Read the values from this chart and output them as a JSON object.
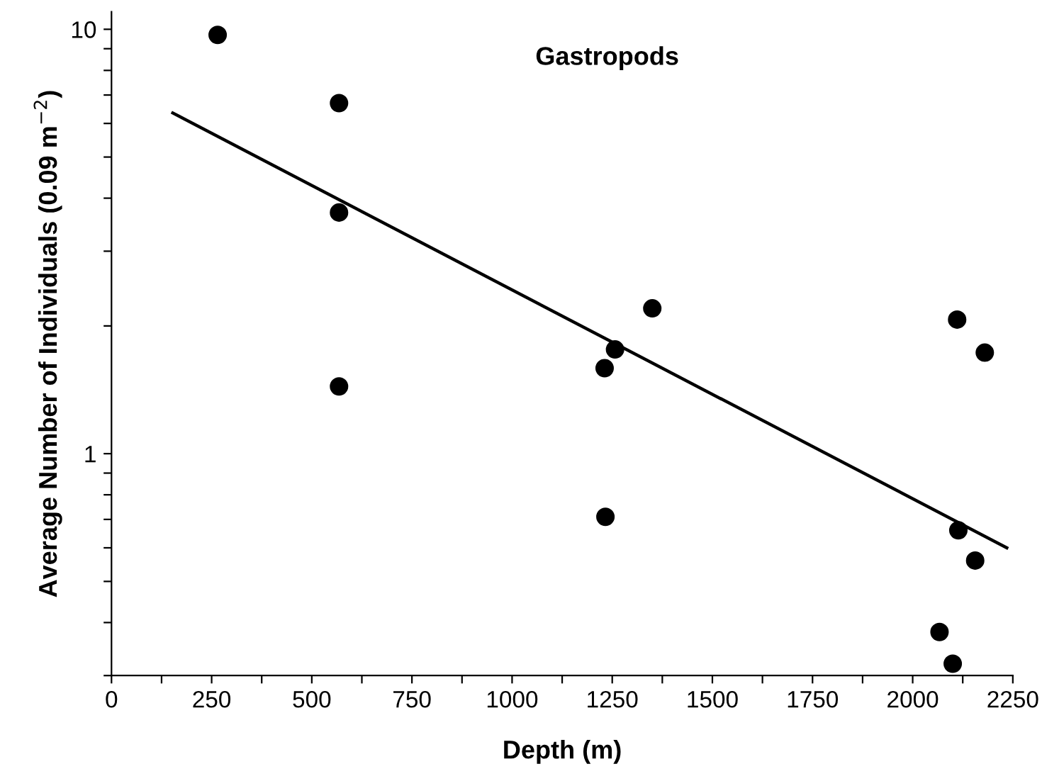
{
  "chart_data": {
    "type": "scatter",
    "title": "Gastropods",
    "xlabel": "Depth (m)",
    "ylabel": "Average Number of Individuals (0.09 m$^{−2}$)",
    "log": "y",
    "marker": "circle",
    "grid": false,
    "legend": false,
    "xlim": [
      0,
      2250
    ],
    "ylim": [
      0.3,
      11
    ],
    "xticks": [
      0,
      {
        "value": 125,
        "label": null
      },
      250,
      {
        "value": 375,
        "label": null
      },
      500,
      {
        "value": 625,
        "label": null
      },
      750,
      {
        "value": 875,
        "label": null
      },
      1000,
      {
        "value": 1125,
        "label": null
      },
      1250,
      {
        "value": 1375,
        "label": null
      },
      1500,
      {
        "value": 1625,
        "label": null
      },
      1750,
      {
        "value": 1875,
        "label": null
      },
      2000,
      {
        "value": 2125,
        "label": null
      },
      2250
    ],
    "yticks": [
      {
        "value": 0.3,
        "label": null
      },
      {
        "value": 0.4,
        "label": null
      },
      {
        "value": 0.5,
        "label": null
      },
      {
        "value": 0.6,
        "label": null
      },
      {
        "value": 0.7,
        "label": null
      },
      {
        "value": 0.8,
        "label": null
      },
      {
        "value": 0.9,
        "label": null
      },
      1,
      {
        "value": 2,
        "label": null
      },
      {
        "value": 3,
        "label": null
      },
      {
        "value": 4,
        "label": null
      },
      {
        "value": 5,
        "label": null
      },
      {
        "value": 6,
        "label": null
      },
      {
        "value": 7,
        "label": null
      },
      {
        "value": 8,
        "label": null
      },
      {
        "value": 9,
        "label": null
      },
      10
    ],
    "series": [
      {
        "color": "#000000",
        "x": [
          265,
          568,
          568,
          568,
          1350,
          1257,
          1231,
          1233,
          2111,
          2180,
          2114,
          2156,
          2067,
          2100
        ],
        "values": [
          9.7,
          6.7,
          3.7,
          1.44,
          2.2,
          1.76,
          1.59,
          0.71,
          2.07,
          1.73,
          0.66,
          0.56,
          0.38,
          0.32
        ]
      },
      {
        "type": "line",
        "color": "#000000",
        "marker": "none",
        "line_style": "solid",
        "x": [
          153,
          2235
        ],
        "values": [
          6.35,
          0.6
        ]
      }
    ]
  }
}
